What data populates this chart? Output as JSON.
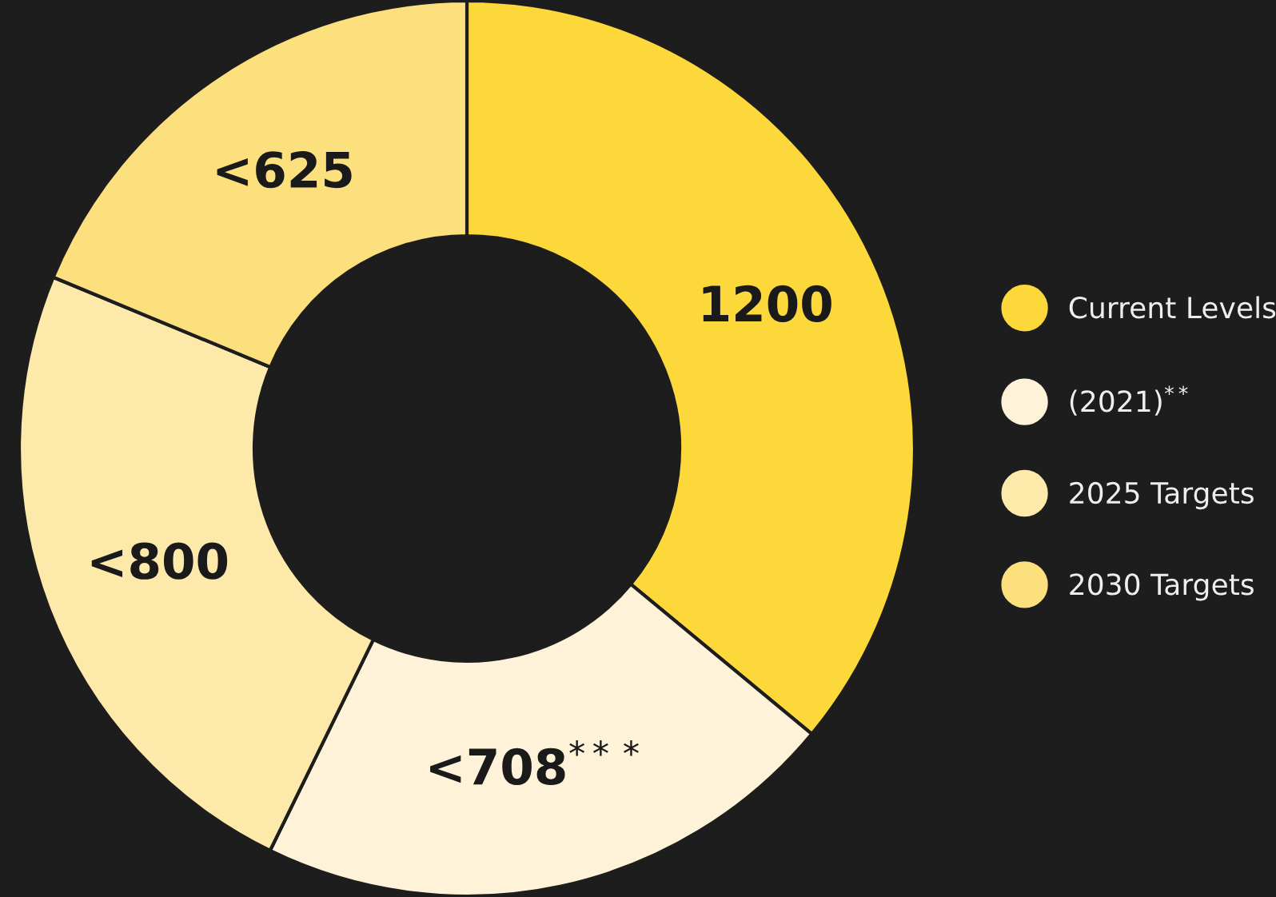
{
  "chart_data": {
    "type": "donut",
    "categories": [
      "Current Levels",
      "(2021)$^{**}$",
      "2025 Targets",
      "2030 Targets"
    ],
    "values": [
      1200,
      708,
      800,
      625
    ],
    "value_labels": [
      "1200",
      "<708$^{***}$",
      "<800",
      "<625"
    ],
    "colors": [
      "#fdd83a",
      "#fef3d8",
      "#fde9a9",
      "#fde07e"
    ],
    "legend": "right"
  }
}
